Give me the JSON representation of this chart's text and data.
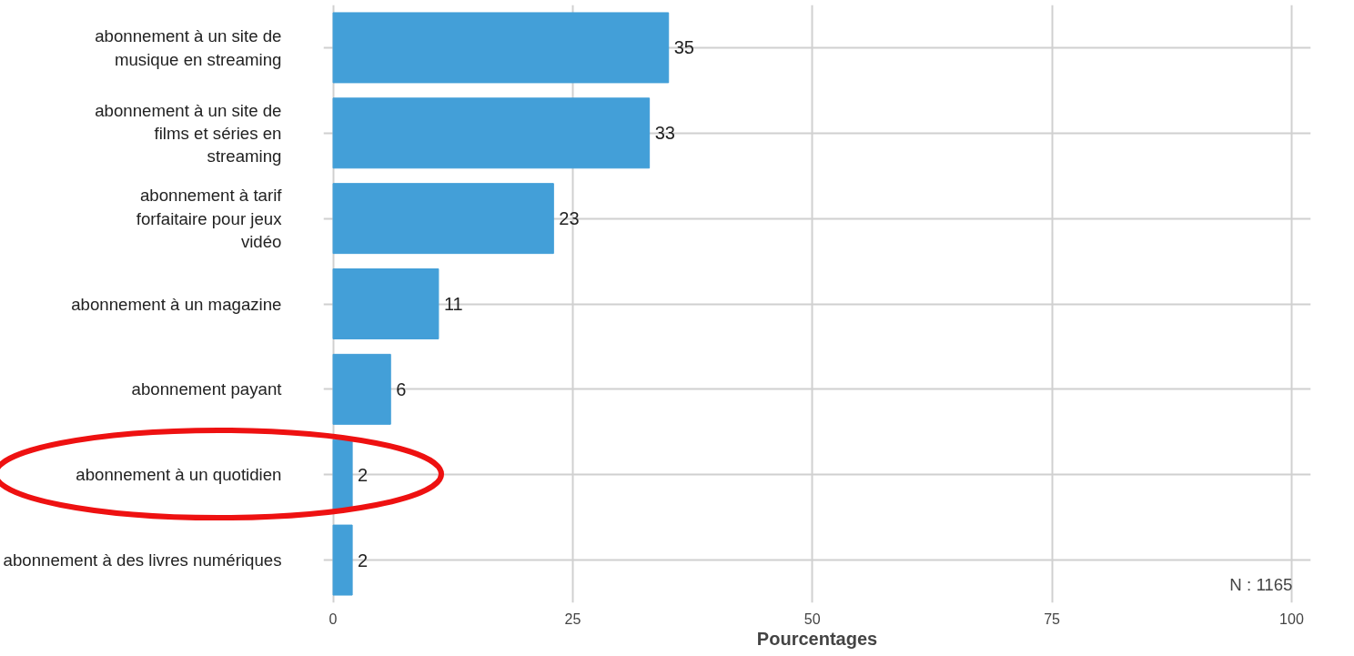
{
  "chart_data": {
    "type": "bar",
    "orientation": "horizontal",
    "xlabel": "Pourcentages",
    "categories": [
      "abonnement à un site de musique en streaming",
      "abonnement à un site de films et séries en streaming",
      "abonnement à tarif forfaitaire pour jeux vidéo",
      "abonnement à un magazine",
      "abonnement payant",
      "abonnement à un quotidien",
      "abonnement à des livres numériques"
    ],
    "values": [
      35,
      33,
      23,
      11,
      6,
      2,
      2
    ],
    "color": "#439fd8",
    "xlim": [
      -1,
      102
    ],
    "xticks": [
      0,
      25,
      50,
      75,
      100
    ],
    "grid": true,
    "data_labels": true,
    "annotations": [
      "N : 1165"
    ]
  }
}
